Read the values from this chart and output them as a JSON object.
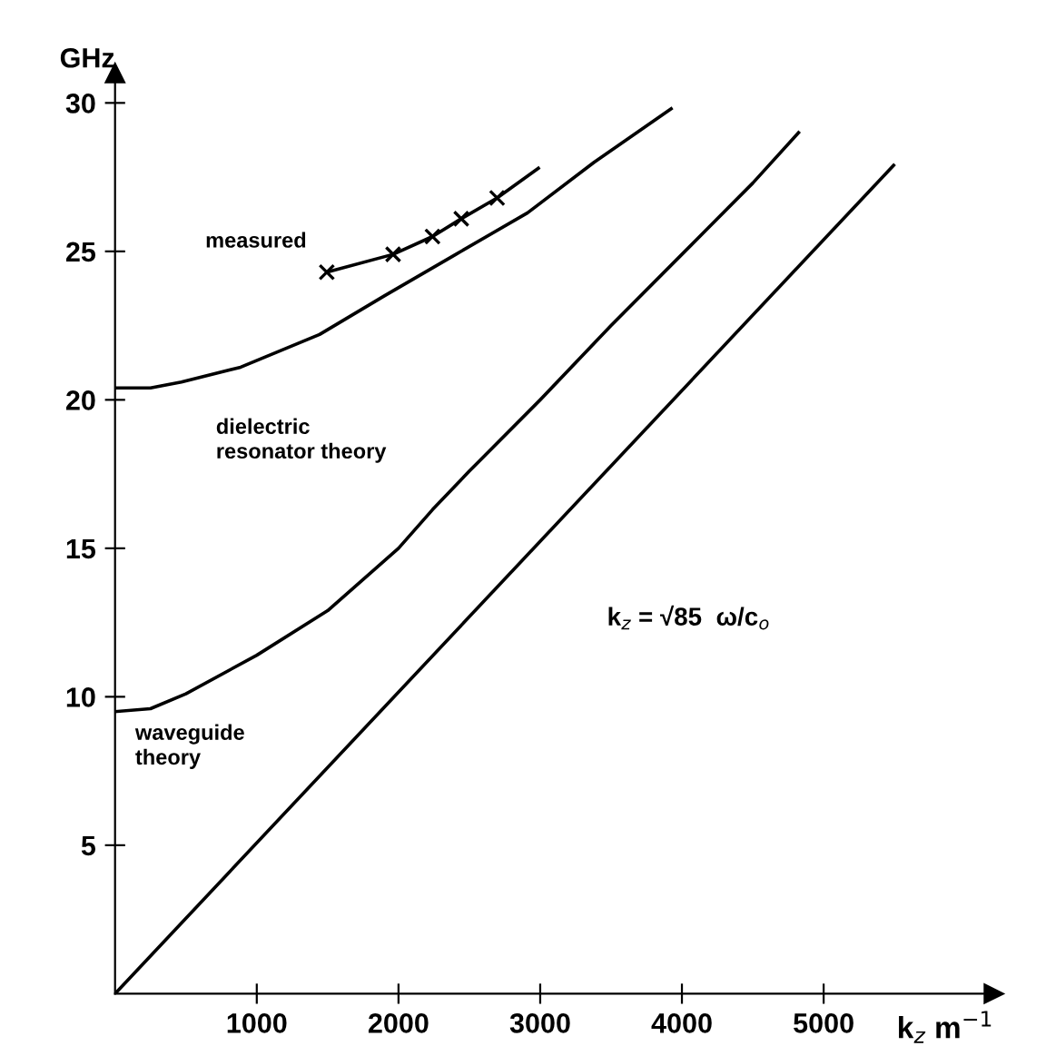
{
  "chart_data": {
    "type": "line",
    "xlabel": "k$_{z}$ m$^{−1}$",
    "ylabel": "GHz",
    "xlim": [
      0,
      6200
    ],
    "ylim": [
      0,
      31
    ],
    "xticks": [
      1000,
      2000,
      3000,
      4000,
      5000
    ],
    "yticks": [
      5,
      10,
      15,
      20,
      25,
      30
    ],
    "grid": false,
    "legend": false,
    "marker": "none",
    "line_style": "solid",
    "annotations": [
      "k$_{z}$ = √85  ω/c$_{o}$"
    ],
    "series": [
      {
        "color": "#000000",
        "x": [
          0,
          5494
        ],
        "values": [
          0,
          27.9
        ]
      },
      {
        "name": "waveguide theory",
        "color": "#000000",
        "x": [
          0,
          250,
          500,
          1000,
          1500,
          2000,
          2240,
          2500,
          3000,
          3500,
          4000,
          4500,
          4823
        ],
        "values": [
          9.5,
          9.6,
          10.1,
          11.4,
          12.9,
          15.0,
          16.3,
          17.6,
          20.0,
          22.5,
          24.9,
          27.3,
          29.0
        ]
      },
      {
        "name": "dielectric resonator theory",
        "color": "#000000",
        "x": [
          0,
          250,
          468,
          886,
          1443,
          1900,
          2405,
          2911,
          3380,
          3924
        ],
        "values": [
          20.4,
          20.4,
          20.6,
          21.1,
          22.2,
          23.5,
          24.9,
          26.3,
          28.0,
          29.8
        ]
      },
      {
        "color": "#000000",
        "x": [
          1494,
          1962,
          2240,
          2443,
          2696,
          2987
        ],
        "values": [
          24.3,
          24.9,
          25.5,
          26.1,
          26.8,
          27.8
        ]
      },
      {
        "type": "scatter",
        "name": "measured",
        "color": "#000000",
        "marker": "cross",
        "x": [
          1494,
          1962,
          2240,
          2443,
          2696
        ],
        "values": [
          24.3,
          24.9,
          25.5,
          26.1,
          26.8
        ]
      }
    ]
  }
}
